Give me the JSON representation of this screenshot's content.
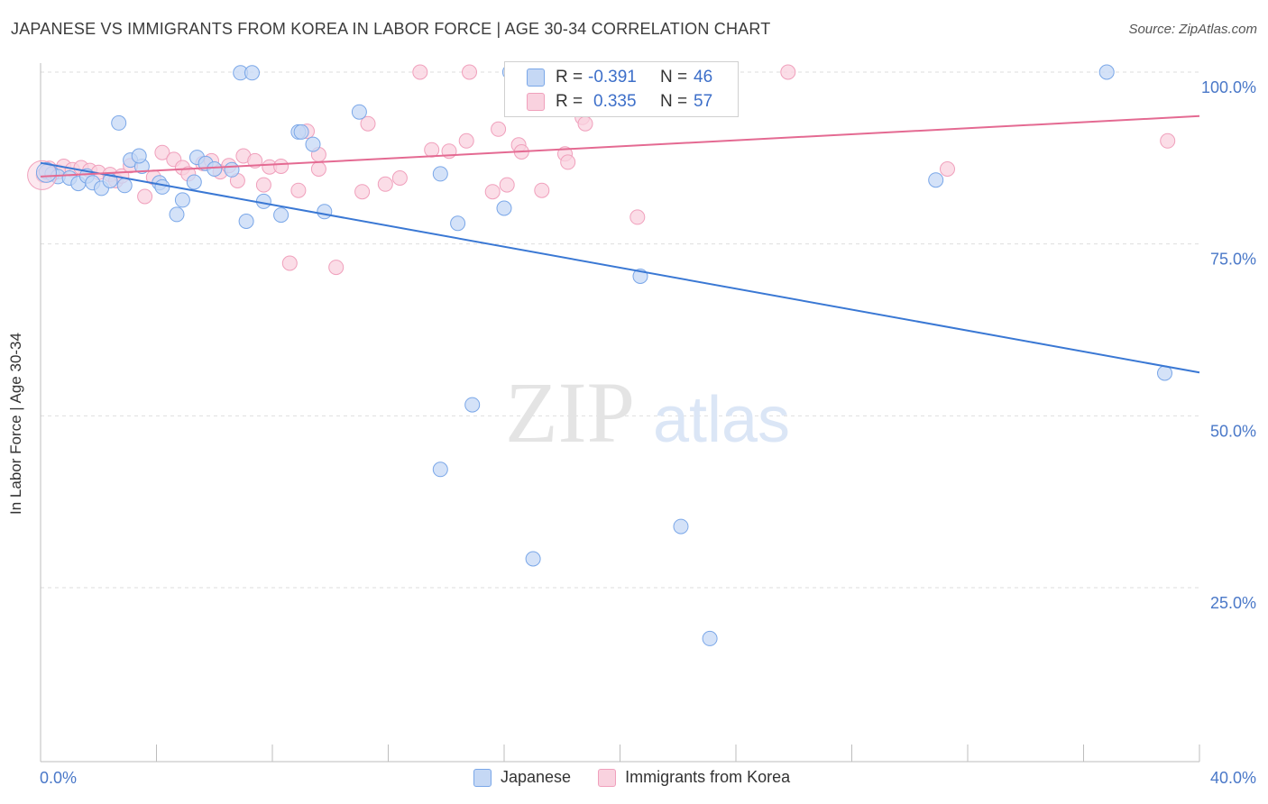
{
  "header": {
    "title": "JAPANESE VS IMMIGRANTS FROM KOREA IN LABOR FORCE | AGE 30-34 CORRELATION CHART",
    "source": "Source: ZipAtlas.com"
  },
  "watermark": {
    "zip": "ZIP",
    "atlas": "atlas"
  },
  "stats_legend": {
    "rows": [
      {
        "r_label": "R =",
        "r_value": "-0.391",
        "n_label": "N =",
        "n_value": "46",
        "color": "#7aa7e8"
      },
      {
        "r_label": "R =",
        "r_value": "0.335",
        "n_label": "N =",
        "n_value": "57",
        "color": "#f0a0bc"
      }
    ]
  },
  "chart_data": {
    "type": "scatter",
    "title": "JAPANESE VS IMMIGRANTS FROM KOREA IN LABOR FORCE | AGE 30-34 CORRELATION CHART",
    "xlabel": "",
    "ylabel": "In Labor Force | Age 30-34",
    "xlim": [
      0,
      40
    ],
    "ylim": [
      0,
      103
    ],
    "x_tick_labels": [
      "0.0%",
      "40.0%"
    ],
    "y_ticks": [
      25,
      50,
      75,
      100
    ],
    "y_tick_labels": [
      "25.0%",
      "50.0%",
      "75.0%",
      "100.0%"
    ],
    "grid": true,
    "legend_position": "bottom",
    "series": [
      {
        "name": "Japanese",
        "color": "#7aa7e8",
        "fill": "#c5d8f5",
        "trend": {
          "x": [
            0,
            40
          ],
          "y": [
            86.8,
            56.3
          ]
        },
        "points": [
          [
            0.2,
            85.5
          ],
          [
            0.4,
            85.2
          ],
          [
            0.6,
            84.8
          ],
          [
            1.0,
            84.6
          ],
          [
            1.3,
            83.8
          ],
          [
            1.6,
            84.9
          ],
          [
            1.8,
            83.9
          ],
          [
            2.1,
            83.1
          ],
          [
            2.4,
            84.2
          ],
          [
            2.7,
            92.6
          ],
          [
            2.9,
            83.5
          ],
          [
            3.1,
            87.2
          ],
          [
            3.5,
            86.3
          ],
          [
            3.4,
            87.8
          ],
          [
            4.1,
            83.9
          ],
          [
            4.2,
            83.3
          ],
          [
            4.7,
            79.3
          ],
          [
            4.9,
            81.4
          ],
          [
            5.3,
            84.0
          ],
          [
            5.4,
            87.6
          ],
          [
            5.7,
            86.7
          ],
          [
            6.0,
            85.9
          ],
          [
            6.6,
            85.8
          ],
          [
            6.9,
            99.9
          ],
          [
            7.1,
            78.3
          ],
          [
            7.3,
            99.9
          ],
          [
            7.7,
            81.2
          ],
          [
            8.3,
            79.2
          ],
          [
            8.9,
            91.3
          ],
          [
            9.0,
            91.3
          ],
          [
            9.4,
            89.5
          ],
          [
            9.8,
            79.7
          ],
          [
            11.0,
            94.2
          ],
          [
            13.8,
            42.2
          ],
          [
            13.8,
            85.2
          ],
          [
            14.4,
            78.0
          ],
          [
            14.9,
            51.6
          ],
          [
            16.2,
            100.0
          ],
          [
            16.0,
            80.2
          ],
          [
            17.0,
            29.2
          ],
          [
            20.7,
            70.3
          ],
          [
            22.1,
            33.9
          ],
          [
            23.1,
            17.6
          ],
          [
            30.9,
            84.3
          ],
          [
            36.8,
            100.0
          ],
          [
            38.8,
            56.2
          ]
        ]
      },
      {
        "name": "Immigrants from Korea",
        "color": "#f0a0bc",
        "fill": "#f9d2df",
        "trend": {
          "x": [
            0,
            40
          ],
          "y": [
            84.8,
            93.6
          ]
        },
        "points": [
          [
            0.1,
            85.0
          ],
          [
            0.3,
            86.0
          ],
          [
            0.6,
            85.5
          ],
          [
            0.8,
            86.3
          ],
          [
            1.1,
            85.8
          ],
          [
            1.4,
            86.1
          ],
          [
            1.7,
            85.7
          ],
          [
            2.0,
            85.4
          ],
          [
            2.4,
            85.1
          ],
          [
            2.6,
            84.2
          ],
          [
            2.8,
            84.9
          ],
          [
            3.1,
            86.4
          ],
          [
            3.6,
            81.9
          ],
          [
            3.9,
            84.7
          ],
          [
            4.2,
            88.3
          ],
          [
            4.6,
            87.3
          ],
          [
            4.9,
            86.1
          ],
          [
            5.1,
            85.2
          ],
          [
            5.6,
            86.7
          ],
          [
            5.9,
            87.1
          ],
          [
            6.2,
            85.5
          ],
          [
            6.5,
            86.4
          ],
          [
            6.8,
            84.2
          ],
          [
            7.0,
            87.8
          ],
          [
            7.4,
            87.1
          ],
          [
            7.7,
            83.6
          ],
          [
            7.9,
            86.2
          ],
          [
            8.3,
            86.3
          ],
          [
            8.9,
            82.8
          ],
          [
            9.2,
            91.4
          ],
          [
            8.6,
            72.2
          ],
          [
            9.6,
            88.0
          ],
          [
            9.6,
            85.9
          ],
          [
            10.2,
            71.6
          ],
          [
            11.1,
            82.6
          ],
          [
            11.3,
            92.5
          ],
          [
            11.9,
            83.7
          ],
          [
            12.4,
            84.6
          ],
          [
            13.1,
            100.0
          ],
          [
            13.5,
            88.7
          ],
          [
            14.1,
            88.5
          ],
          [
            14.7,
            90.0
          ],
          [
            14.8,
            100.0
          ],
          [
            15.6,
            82.6
          ],
          [
            15.8,
            91.7
          ],
          [
            16.1,
            83.6
          ],
          [
            16.5,
            89.4
          ],
          [
            16.6,
            88.4
          ],
          [
            17.3,
            82.8
          ],
          [
            18.1,
            88.1
          ],
          [
            18.2,
            86.9
          ],
          [
            18.7,
            93.4
          ],
          [
            18.8,
            92.5
          ],
          [
            19.6,
            100.0
          ],
          [
            20.6,
            78.9
          ],
          [
            25.8,
            100.0
          ],
          [
            31.3,
            85.9
          ],
          [
            38.9,
            90.0
          ]
        ]
      }
    ]
  },
  "bottom_legend": {
    "items": [
      {
        "label": "Japanese",
        "color": "#7aa7e8",
        "fill": "#c5d8f5"
      },
      {
        "label": "Immigrants from Korea",
        "color": "#f0a0bc",
        "fill": "#f9d2df"
      }
    ]
  }
}
